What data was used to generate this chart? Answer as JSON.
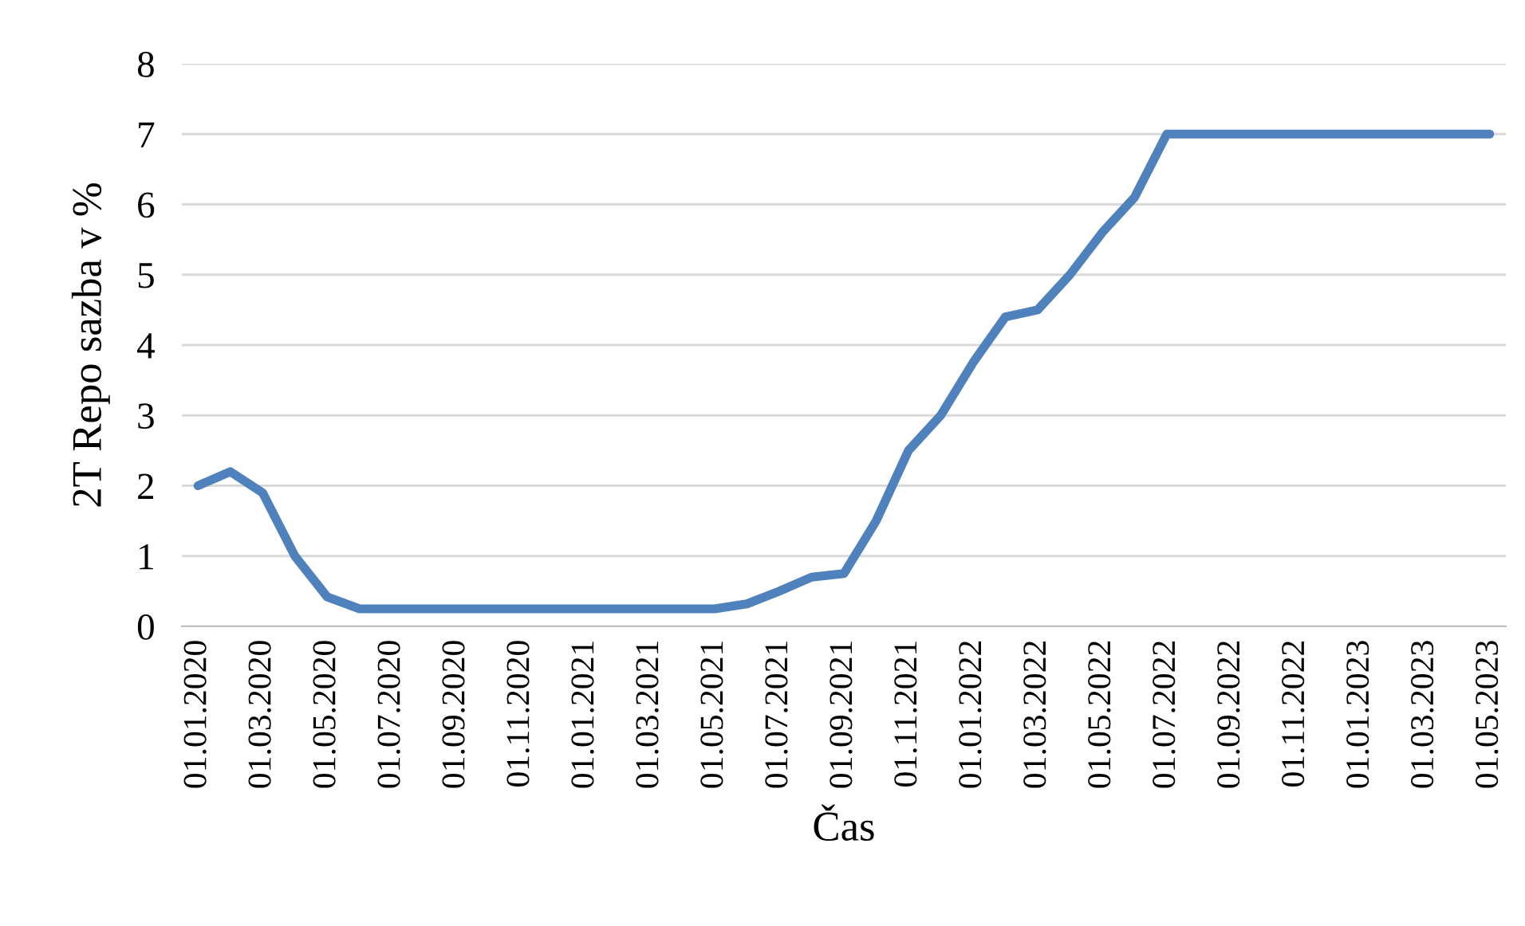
{
  "chart_data": {
    "type": "line",
    "xlabel": "Čas",
    "ylabel": "2T Repo sazba v %",
    "categories": [
      "01.01.2020",
      null,
      "01.03.2020",
      null,
      "01.05.2020",
      null,
      "01.07.2020",
      null,
      "01.09.2020",
      null,
      "01.11.2020",
      null,
      "01.01.2021",
      null,
      "01.03.2021",
      null,
      "01.05.2021",
      null,
      "01.07.2021",
      null,
      "01.09.2021",
      null,
      "01.11.2021",
      null,
      "01.01.2022",
      null,
      "01.03.2022",
      null,
      "01.05.2022",
      null,
      "01.07.2022",
      null,
      "01.09.2022",
      null,
      "01.11.2022",
      null,
      "01.01.2023",
      null,
      "01.03.2023",
      null,
      "01.05.2023"
    ],
    "series": [
      {
        "color": "#4f81bd",
        "values": [
          2.0,
          2.2,
          1.9,
          1.0,
          0.42,
          0.25,
          0.25,
          0.25,
          0.25,
          0.25,
          0.25,
          0.25,
          0.25,
          0.25,
          0.25,
          0.25,
          0.25,
          0.32,
          0.5,
          0.7,
          0.75,
          1.5,
          2.5,
          3.0,
          3.75,
          4.4,
          4.5,
          5.0,
          5.6,
          6.1,
          7.0,
          7.0,
          7.0,
          7.0,
          7.0,
          7.0,
          7.0,
          7.0,
          7.0,
          7.0,
          7.0
        ]
      }
    ],
    "ylim": [
      0,
      8
    ],
    "yticks": [
      0,
      1,
      2,
      3,
      4,
      5,
      6,
      7,
      8
    ],
    "grid": "y",
    "marker": "none",
    "line_style": "solid"
  }
}
